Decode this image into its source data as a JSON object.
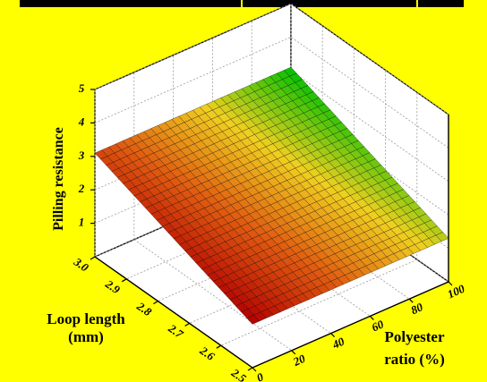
{
  "chart_data": {
    "type": "surface3d",
    "title": "",
    "xlabel": [
      "Loop length",
      "(mm)"
    ],
    "ylabel": [
      "Polyester",
      "ratio (%)"
    ],
    "zlabel": "Pilling resistance",
    "x_ticks": [
      "3.0",
      "2.9",
      "2.8",
      "2.7",
      "2.6",
      "2.5"
    ],
    "y_ticks": [
      "0",
      "20",
      "40",
      "60",
      "80",
      "100"
    ],
    "z_ticks": [
      "1",
      "2",
      "3",
      "4",
      "5"
    ],
    "xlim": [
      2.5,
      3.0
    ],
    "ylim": [
      0,
      100
    ],
    "zlim": [
      0,
      5
    ],
    "grid": true,
    "surface_corners": [
      {
        "x": 3.0,
        "y": 0,
        "z": 3.1
      },
      {
        "x": 3.0,
        "y": 100,
        "z": 3.1
      },
      {
        "x": 2.5,
        "y": 0,
        "z": 1.3
      },
      {
        "x": 2.5,
        "y": 100,
        "z": 1.3
      }
    ],
    "colormap": [
      "#b20000",
      "#e05a10",
      "#f0d020",
      "#00c000"
    ]
  }
}
